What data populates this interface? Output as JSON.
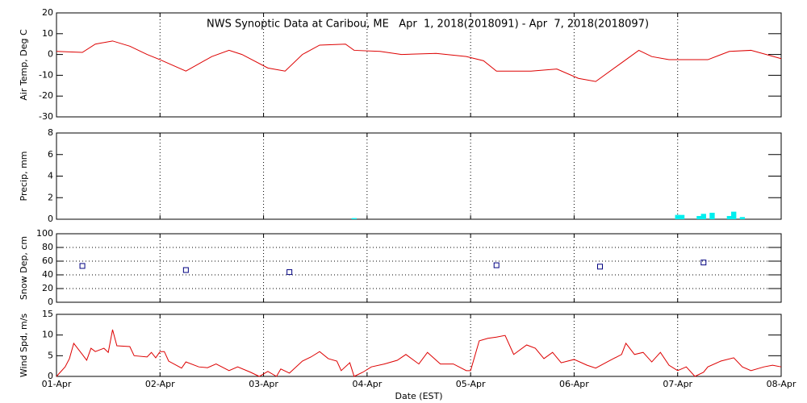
{
  "chart_data": [
    {
      "type": "line",
      "title": "NWS Synoptic Data at Caribou, ME   Apr  1, 2018(2018091) - Apr  7, 2018(2018097)",
      "ylabel": "Air Temp, Deg C",
      "color": "#dd0000",
      "x": [
        0,
        6,
        9,
        13,
        17,
        21,
        24,
        30,
        36,
        40,
        43,
        49,
        53,
        57,
        61,
        67,
        69,
        75,
        80,
        88,
        95,
        99,
        102,
        110,
        116,
        121,
        125,
        131,
        135,
        138,
        142,
        151,
        156,
        161,
        168
      ],
      "values": [
        1.5,
        1,
        5,
        6.5,
        4,
        0,
        -2.5,
        -8,
        -1,
        2,
        0,
        -6.5,
        -8,
        0,
        4.5,
        5,
        2,
        1.5,
        0,
        0.5,
        -1,
        -3,
        -8,
        -8,
        -7,
        -11.5,
        -13,
        -4,
        2,
        -1,
        -2.5,
        -2.5,
        1.5,
        2,
        -2
      ],
      "ylim": [
        -30,
        20
      ],
      "yticks": [
        -30,
        -20,
        -10,
        0,
        10,
        20
      ],
      "ygrid": false
    },
    {
      "type": "bar",
      "ylabel": "Precip, mm",
      "color": "#00eeee",
      "x": [
        69,
        144,
        145,
        149,
        150,
        152,
        156,
        157,
        159
      ],
      "values": [
        0.1,
        0.4,
        0.4,
        0.3,
        0.5,
        0.6,
        0.3,
        0.7,
        0.2
      ],
      "ylim": [
        0,
        8
      ],
      "yticks": [
        0,
        2,
        4,
        6,
        8
      ],
      "ygrid": false
    },
    {
      "type": "scatter",
      "ylabel": "Snow Dep, cm",
      "color": "#000080",
      "x": [
        6,
        30,
        54,
        102,
        126,
        150
      ],
      "values": [
        53,
        47,
        44,
        54,
        52,
        58
      ],
      "ylim": [
        0,
        100
      ],
      "yticks": [
        0,
        20,
        40,
        60,
        80,
        100
      ],
      "ygrid": true
    },
    {
      "type": "line",
      "ylabel": "Wind Spd, m/s",
      "xlabel": "Date (EST)",
      "color": "#dd0000",
      "x": [
        0,
        2,
        3,
        4,
        6,
        7,
        8,
        9,
        11,
        12,
        13,
        14,
        17,
        18,
        21,
        22,
        23,
        24,
        25,
        26,
        29,
        30,
        33,
        35,
        37,
        40,
        42,
        45,
        47,
        49,
        51,
        52,
        54,
        57,
        59,
        61,
        63,
        65,
        66,
        68,
        69,
        71,
        73,
        76,
        79,
        81,
        84,
        86,
        89,
        92,
        95,
        96,
        98,
        100,
        102,
        104,
        106,
        109,
        111,
        113,
        115,
        117,
        120,
        123,
        125,
        128,
        131,
        132,
        134,
        136,
        138,
        140,
        142,
        144,
        146,
        148,
        150,
        151,
        154,
        157,
        159,
        161,
        164,
        166,
        168
      ],
      "values": [
        0,
        2.3,
        4.3,
        8,
        5.3,
        3.9,
        6.8,
        6,
        6.8,
        5.8,
        11.3,
        7.4,
        7.2,
        5,
        4.7,
        5.8,
        4.5,
        6,
        6,
        3.7,
        2,
        3.5,
        2.3,
        2.1,
        3,
        1.4,
        2.3,
        1,
        0,
        1.2,
        0,
        1.8,
        0.8,
        3.7,
        4.7,
        6,
        4.3,
        3.7,
        1.4,
        3.3,
        0,
        1,
        2.3,
        3,
        3.9,
        5.3,
        3,
        5.8,
        3,
        3,
        1.4,
        1.4,
        8.6,
        9.2,
        9.5,
        9.9,
        5.3,
        7.6,
        6.8,
        4.3,
        5.8,
        3.3,
        4.1,
        2.7,
        2,
        3.7,
        5.3,
        8,
        5.3,
        5.8,
        3.5,
        5.8,
        2.7,
        1.4,
        2.3,
        0,
        1,
        2.3,
        3.7,
        4.5,
        2.3,
        1.4,
        2.3,
        2.7,
        2.3
      ],
      "ylim": [
        0,
        15
      ],
      "yticks": [
        0,
        5,
        10,
        15
      ],
      "ygrid": false,
      "xlim": [
        0,
        168
      ],
      "xticks": [
        {
          "value": 0,
          "label": "01-Apr"
        },
        {
          "value": 24,
          "label": "02-Apr"
        },
        {
          "value": 48,
          "label": "03-Apr"
        },
        {
          "value": 72,
          "label": "04-Apr"
        },
        {
          "value": 96,
          "label": "05-Apr"
        },
        {
          "value": 120,
          "label": "06-Apr"
        },
        {
          "value": 144,
          "label": "07-Apr"
        },
        {
          "value": 168,
          "label": "08-Apr"
        }
      ]
    }
  ]
}
